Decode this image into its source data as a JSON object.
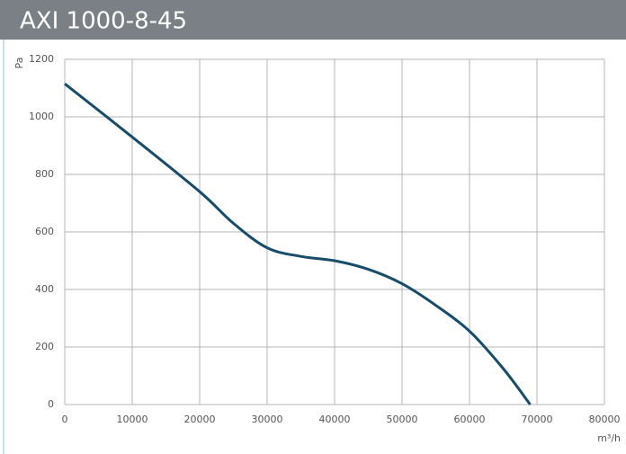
{
  "chart_data": {
    "type": "line",
    "title": "AXI 1000-8-45",
    "y_label": "Pa",
    "x_label": "m³/h",
    "x": [
      0,
      10000,
      20000,
      25000,
      30000,
      35000,
      40000,
      45000,
      50000,
      55000,
      60000,
      65000,
      69000
    ],
    "values": [
      1115,
      930,
      740,
      630,
      545,
      515,
      500,
      470,
      420,
      345,
      255,
      125,
      0
    ],
    "color": "#174c6b",
    "xlim": [
      0,
      80000
    ],
    "xticks": [
      0,
      10000,
      20000,
      30000,
      40000,
      50000,
      60000,
      70000,
      80000
    ],
    "ylim": [
      0,
      1200
    ],
    "yticks": [
      0,
      200,
      400,
      600,
      800,
      1000,
      1200
    ],
    "grid": true
  }
}
